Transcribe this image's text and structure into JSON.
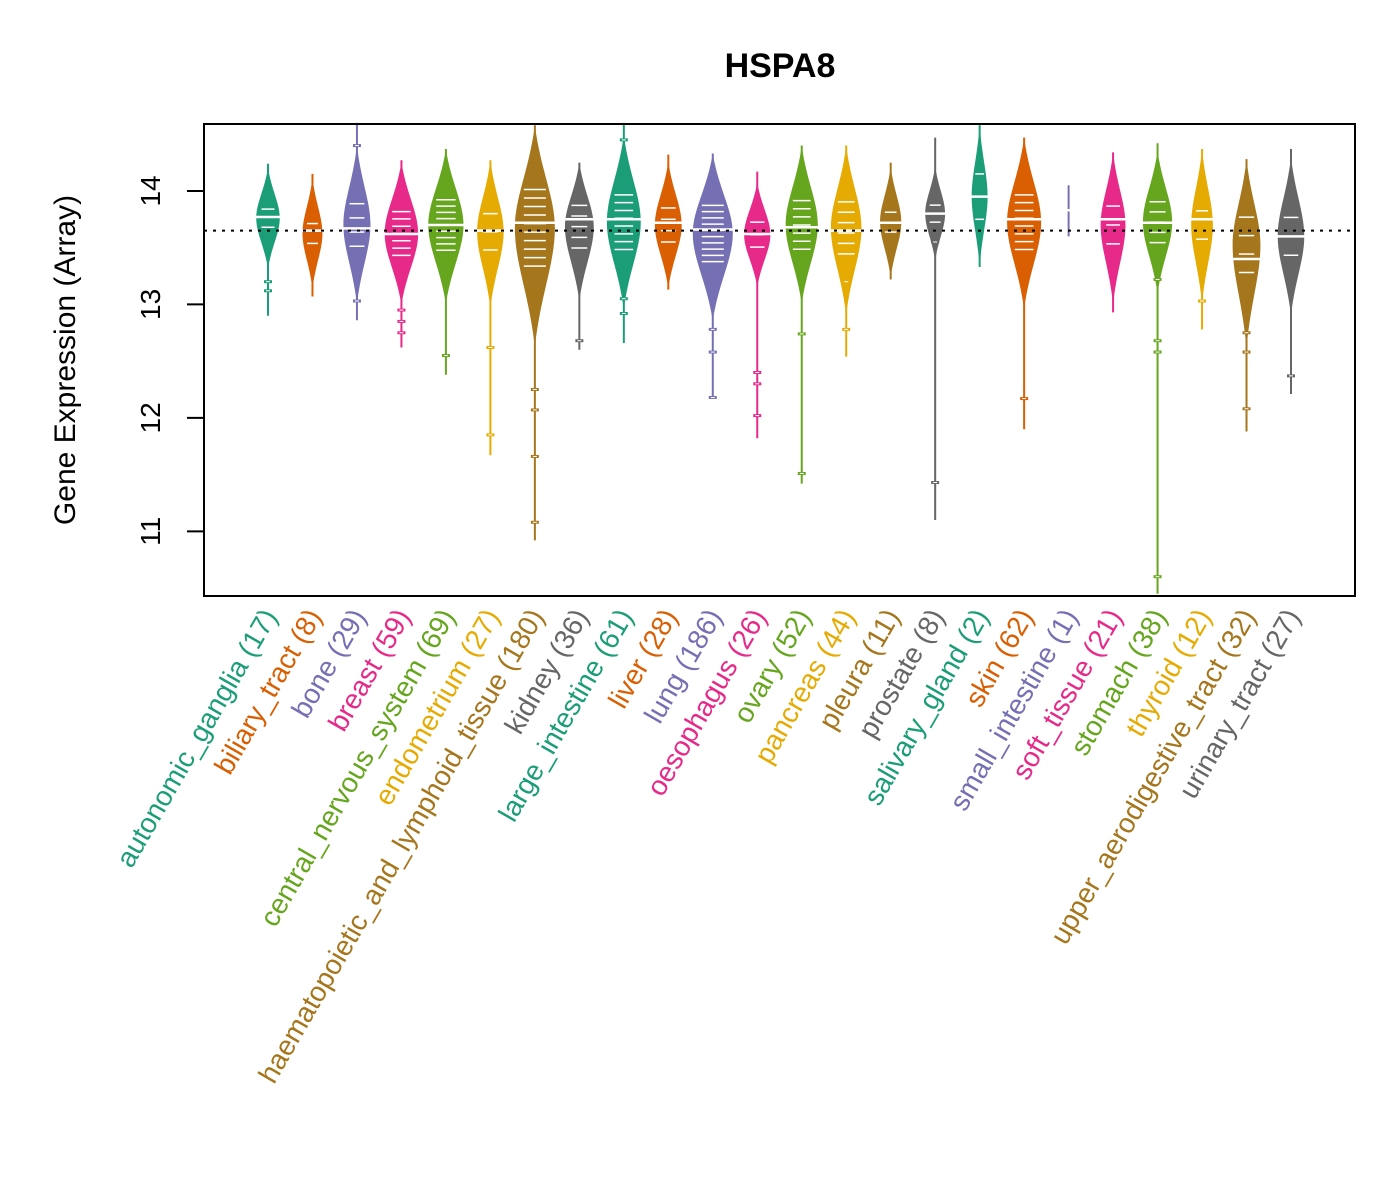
{
  "chart_data": {
    "type": "violin",
    "title": "HSPA8",
    "xlabel": "",
    "ylabel": "Gene Expression (Array)",
    "ylim": [
      10.43,
      14.59
    ],
    "yticks": [
      11,
      12,
      13,
      14
    ],
    "ytick_labels": [
      "11",
      "12",
      "13",
      "14"
    ],
    "grid": false,
    "legend": "none",
    "reference_line": {
      "value": 13.65,
      "style": "dotted",
      "color": "#000000"
    },
    "categories": [
      {
        "name": "autonomic_ganglia",
        "n": 17,
        "label": "autonomic_ganglia (17)",
        "color": "#1B9E77",
        "median": 13.77,
        "min": 12.9,
        "max": 14.24,
        "q1": 13.6,
        "q3": 13.92,
        "outliers": [
          13.2,
          13.12
        ]
      },
      {
        "name": "biliary_tract",
        "n": 8,
        "label": "biliary_tract (8)",
        "color": "#D95F02",
        "median": 13.65,
        "min": 13.07,
        "max": 14.15,
        "q1": 13.45,
        "q3": 13.8,
        "outliers": []
      },
      {
        "name": "bone",
        "n": 29,
        "label": "bone (29)",
        "color": "#7570B3",
        "median": 13.67,
        "min": 12.86,
        "max": 14.6,
        "q1": 13.45,
        "q3": 13.95,
        "outliers": [
          14.4,
          13.03
        ]
      },
      {
        "name": "breast",
        "n": 59,
        "label": "breast (59)",
        "color": "#E7298A",
        "median": 13.62,
        "min": 12.62,
        "max": 14.27,
        "q1": 13.4,
        "q3": 13.85,
        "outliers": [
          12.95,
          12.85,
          12.75
        ]
      },
      {
        "name": "central_nervous_system",
        "n": 69,
        "label": "central_nervous_system (69)",
        "color": "#66A61E",
        "median": 13.7,
        "min": 12.38,
        "max": 14.37,
        "q1": 13.45,
        "q3": 13.95,
        "outliers": [
          12.55
        ]
      },
      {
        "name": "endometrium",
        "n": 27,
        "label": "endometrium (27)",
        "color": "#E6AB02",
        "median": 13.65,
        "min": 11.67,
        "max": 14.27,
        "q1": 13.4,
        "q3": 13.88,
        "outliers": [
          12.62,
          11.85
        ]
      },
      {
        "name": "haematopoietic_and_lymphoid_tissue",
        "n": 180,
        "label": "haematopoietic_and_lymphoid_tissue (180)",
        "color": "#A6761D",
        "median": 13.72,
        "min": 10.92,
        "max": 14.58,
        "q1": 13.3,
        "q3": 14.05,
        "outliers": [
          12.25,
          12.07,
          11.66,
          11.08
        ]
      },
      {
        "name": "kidney",
        "n": 36,
        "label": "kidney (36)",
        "color": "#666666",
        "median": 13.75,
        "min": 12.6,
        "max": 14.25,
        "q1": 13.45,
        "q3": 13.92,
        "outliers": [
          12.68
        ]
      },
      {
        "name": "large_intestine",
        "n": 61,
        "label": "large_intestine (61)",
        "color": "#1B9E77",
        "median": 13.75,
        "min": 12.66,
        "max": 14.6,
        "q1": 13.45,
        "q3": 14.0,
        "outliers": [
          14.45,
          13.05,
          12.92
        ]
      },
      {
        "name": "liver",
        "n": 28,
        "label": "liver (28)",
        "color": "#D95F02",
        "median": 13.72,
        "min": 13.13,
        "max": 14.32,
        "q1": 13.5,
        "q3": 13.9,
        "outliers": []
      },
      {
        "name": "lung",
        "n": 186,
        "label": "lung (186)",
        "color": "#7570B3",
        "median": 13.66,
        "min": 12.18,
        "max": 14.33,
        "q1": 13.35,
        "q3": 13.9,
        "outliers": [
          12.78,
          12.58,
          12.18
        ]
      },
      {
        "name": "oesophagus",
        "n": 26,
        "label": "oesophagus (26)",
        "color": "#E7298A",
        "median": 13.62,
        "min": 11.82,
        "max": 14.17,
        "q1": 13.45,
        "q3": 13.78,
        "outliers": [
          12.4,
          12.3,
          12.02
        ]
      },
      {
        "name": "ovary",
        "n": 52,
        "label": "ovary (52)",
        "color": "#66A61E",
        "median": 13.68,
        "min": 11.42,
        "max": 14.4,
        "q1": 13.45,
        "q3": 13.95,
        "outliers": [
          12.74,
          11.51
        ]
      },
      {
        "name": "pancreas",
        "n": 44,
        "label": "pancreas (44)",
        "color": "#E6AB02",
        "median": 13.65,
        "min": 12.54,
        "max": 14.4,
        "q1": 13.4,
        "q3": 13.95,
        "outliers": [
          13.2,
          12.78
        ]
      },
      {
        "name": "pleura",
        "n": 11,
        "label": "pleura (11)",
        "color": "#A6761D",
        "median": 13.72,
        "min": 13.22,
        "max": 14.25,
        "q1": 13.55,
        "q3": 13.9,
        "outliers": []
      },
      {
        "name": "prostate",
        "n": 8,
        "label": "prostate (8)",
        "color": "#666666",
        "median": 13.8,
        "min": 11.1,
        "max": 14.47,
        "q1": 13.65,
        "q3": 13.95,
        "outliers": [
          13.55,
          11.43
        ]
      },
      {
        "name": "salivary_gland",
        "n": 2,
        "label": "salivary_gland (2)",
        "color": "#1B9E77",
        "median": 13.95,
        "min": 13.33,
        "max": 14.58,
        "q1": 13.55,
        "q3": 14.35,
        "outliers": []
      },
      {
        "name": "skin",
        "n": 62,
        "label": "skin (62)",
        "color": "#D95F02",
        "median": 13.75,
        "min": 11.9,
        "max": 14.47,
        "q1": 13.45,
        "q3": 14.0,
        "outliers": [
          12.17
        ]
      },
      {
        "name": "small_intestine",
        "n": 1,
        "label": "small_intestine (1)",
        "color": "#7570B3",
        "median": 13.83,
        "min": 13.6,
        "max": 14.05,
        "q1": 13.83,
        "q3": 13.83,
        "outliers": []
      },
      {
        "name": "soft_tissue",
        "n": 21,
        "label": "soft_tissue (21)",
        "color": "#E7298A",
        "median": 13.75,
        "min": 12.93,
        "max": 14.34,
        "q1": 13.45,
        "q3": 13.95,
        "outliers": []
      },
      {
        "name": "stomach",
        "n": 38,
        "label": "stomach (38)",
        "color": "#66A61E",
        "median": 13.72,
        "min": 10.45,
        "max": 14.42,
        "q1": 13.5,
        "q3": 13.95,
        "outliers": [
          13.22,
          12.68,
          12.58,
          10.6
        ]
      },
      {
        "name": "thyroid",
        "n": 12,
        "label": "thyroid (12)",
        "color": "#E6AB02",
        "median": 13.75,
        "min": 12.78,
        "max": 14.37,
        "q1": 13.45,
        "q3": 13.95,
        "outliers": [
          13.03
        ]
      },
      {
        "name": "upper_aerodigestive_tract",
        "n": 32,
        "label": "upper_aerodigestive_tract (32)",
        "color": "#A6761D",
        "median": 13.4,
        "min": 11.88,
        "max": 14.28,
        "q1": 13.2,
        "q3": 13.85,
        "outliers": [
          12.75,
          12.58,
          12.08
        ]
      },
      {
        "name": "urinary_tract",
        "n": 27,
        "label": "urinary_tract (27)",
        "color": "#666666",
        "median": 13.6,
        "min": 12.21,
        "max": 14.37,
        "q1": 13.35,
        "q3": 13.85,
        "outliers": [
          12.37
        ]
      }
    ]
  }
}
